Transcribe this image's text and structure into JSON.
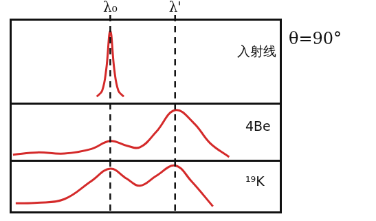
{
  "chart_data": [
    {
      "type": "line",
      "title": "入射线",
      "x": [
        32,
        34,
        35.5,
        37,
        38.5,
        40,
        42
      ],
      "values": [
        0.8,
        1.5,
        4,
        8.6,
        4,
        1.5,
        0.8
      ],
      "xlim": [
        0,
        100
      ],
      "ylim": [
        0,
        10
      ],
      "color": "#d42a2a",
      "tick_labels": false,
      "grid": false
    },
    {
      "type": "line",
      "title": "4Be",
      "x": [
        1,
        10,
        20,
        30,
        37,
        43,
        48,
        54,
        61,
        68,
        74,
        81
      ],
      "values": [
        1,
        1.4,
        1.2,
        2,
        3.4,
        2.6,
        2.3,
        5,
        8.8,
        6.5,
        3,
        0.6
      ],
      "xlim": [
        0,
        100
      ],
      "ylim": [
        0,
        10
      ],
      "color": "#d42a2a",
      "tick_labels": false,
      "grid": false
    },
    {
      "type": "line",
      "title": "¹⁹K",
      "x": [
        2,
        10,
        20,
        30,
        37,
        43,
        48,
        54,
        61,
        67,
        75
      ],
      "values": [
        1.7,
        1.8,
        2.5,
        6,
        8.4,
        6.5,
        5.1,
        7,
        9,
        6,
        1.1
      ],
      "xlim": [
        0,
        100
      ],
      "ylim": [
        0,
        10
      ],
      "color": "#d42a2a",
      "tick_labels": false,
      "grid": false
    }
  ],
  "reference_lines": [
    {
      "x": 37,
      "label": "λ₀"
    },
    {
      "x": 61,
      "label": "λ'"
    }
  ],
  "annotation": "θ=90°"
}
